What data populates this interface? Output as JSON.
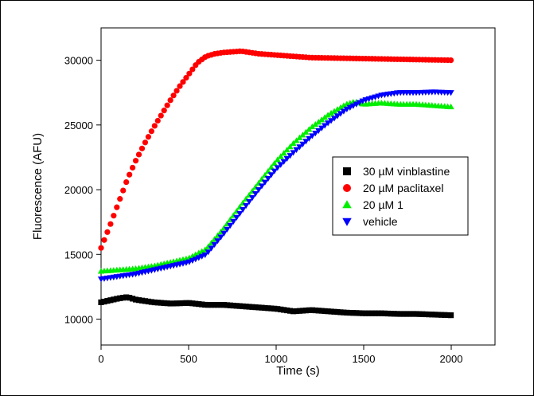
{
  "chart_data": {
    "type": "scatter",
    "xlabel": "Time (s)",
    "ylabel": "Fluorescence (AFU)",
    "xlim": [
      0,
      2250
    ],
    "ylim": [
      8000,
      32500
    ],
    "x_ticks": [
      0,
      500,
      1000,
      1500,
      2000
    ],
    "y_ticks": [
      10000,
      15000,
      20000,
      25000,
      30000
    ],
    "legend_position": "right-middle",
    "series": [
      {
        "name": "30 µM vinblastine",
        "marker": "square",
        "color": "#000000",
        "points": [
          [
            0,
            11300
          ],
          [
            100,
            11600
          ],
          [
            150,
            11700
          ],
          [
            200,
            11500
          ],
          [
            300,
            11300
          ],
          [
            400,
            11200
          ],
          [
            500,
            11250
          ],
          [
            600,
            11100
          ],
          [
            700,
            11100
          ],
          [
            800,
            11000
          ],
          [
            900,
            10900
          ],
          [
            1000,
            10800
          ],
          [
            1100,
            10600
          ],
          [
            1200,
            10700
          ],
          [
            1300,
            10600
          ],
          [
            1400,
            10500
          ],
          [
            1500,
            10450
          ],
          [
            1600,
            10450
          ],
          [
            1700,
            10400
          ],
          [
            1800,
            10400
          ],
          [
            1900,
            10350
          ],
          [
            2000,
            10300
          ]
        ]
      },
      {
        "name": "20 µM paclitaxel",
        "marker": "circle",
        "color": "#ff0000",
        "points": [
          [
            0,
            15500
          ],
          [
            50,
            17200
          ],
          [
            100,
            19000
          ],
          [
            150,
            20800
          ],
          [
            200,
            22300
          ],
          [
            250,
            23600
          ],
          [
            300,
            24800
          ],
          [
            350,
            25900
          ],
          [
            400,
            27000
          ],
          [
            450,
            28000
          ],
          [
            500,
            28900
          ],
          [
            550,
            29800
          ],
          [
            600,
            30300
          ],
          [
            650,
            30500
          ],
          [
            700,
            30600
          ],
          [
            800,
            30700
          ],
          [
            900,
            30500
          ],
          [
            1000,
            30400
          ],
          [
            1200,
            30200
          ],
          [
            1400,
            30150
          ],
          [
            1600,
            30100
          ],
          [
            1800,
            30050
          ],
          [
            2000,
            30000
          ]
        ]
      },
      {
        "name": "20 µM 1",
        "marker": "triangle-up",
        "color": "#00ee00",
        "points": [
          [
            0,
            13700
          ],
          [
            100,
            13800
          ],
          [
            200,
            13900
          ],
          [
            300,
            14100
          ],
          [
            400,
            14400
          ],
          [
            500,
            14700
          ],
          [
            600,
            15400
          ],
          [
            700,
            17000
          ],
          [
            800,
            18800
          ],
          [
            900,
            20500
          ],
          [
            1000,
            22200
          ],
          [
            1100,
            23600
          ],
          [
            1200,
            24800
          ],
          [
            1300,
            25800
          ],
          [
            1400,
            26600
          ],
          [
            1450,
            26800
          ],
          [
            1500,
            26600
          ],
          [
            1600,
            26700
          ],
          [
            1700,
            26600
          ],
          [
            1800,
            26600
          ],
          [
            1900,
            26500
          ],
          [
            2000,
            26400
          ]
        ]
      },
      {
        "name": "vehicle",
        "marker": "triangle-down",
        "color": "#0000ff",
        "points": [
          [
            0,
            13100
          ],
          [
            100,
            13300
          ],
          [
            200,
            13500
          ],
          [
            300,
            13800
          ],
          [
            400,
            14100
          ],
          [
            500,
            14400
          ],
          [
            600,
            15000
          ],
          [
            700,
            16600
          ],
          [
            800,
            18300
          ],
          [
            900,
            20000
          ],
          [
            1000,
            21600
          ],
          [
            1100,
            22900
          ],
          [
            1200,
            24100
          ],
          [
            1300,
            25200
          ],
          [
            1400,
            26200
          ],
          [
            1500,
            26900
          ],
          [
            1600,
            27300
          ],
          [
            1700,
            27500
          ],
          [
            1800,
            27500
          ],
          [
            1900,
            27550
          ],
          [
            2000,
            27500
          ]
        ]
      }
    ]
  }
}
